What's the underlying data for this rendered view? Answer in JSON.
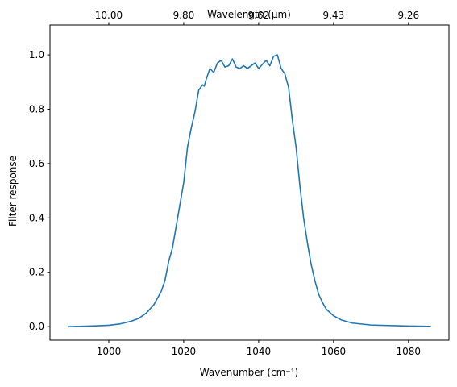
{
  "chart_data": {
    "type": "line",
    "xlabel": "Wavenumber (cm⁻¹)",
    "ylabel": "Filter response",
    "x2label": "Wavelength (μm)",
    "color": "#1f77b4",
    "x": [
      989,
      995,
      1000,
      1003,
      1006,
      1008,
      1010,
      1012,
      1014,
      1015,
      1016,
      1017,
      1018,
      1019,
      1020,
      1021,
      1022,
      1023,
      1024,
      1025,
      1025.5,
      1026,
      1027,
      1028,
      1029,
      1030,
      1031,
      1032,
      1033,
      1034,
      1035,
      1036,
      1037,
      1038,
      1039,
      1040,
      1041,
      1042,
      1043,
      1044,
      1045,
      1046,
      1047,
      1048,
      1049,
      1050,
      1051,
      1052,
      1053,
      1054,
      1055,
      1056,
      1057,
      1058,
      1060,
      1062,
      1065,
      1070,
      1080,
      1086
    ],
    "values": [
      0.0,
      0.002,
      0.005,
      0.01,
      0.02,
      0.03,
      0.05,
      0.08,
      0.13,
      0.17,
      0.24,
      0.29,
      0.37,
      0.45,
      0.53,
      0.66,
      0.73,
      0.79,
      0.87,
      0.89,
      0.885,
      0.91,
      0.95,
      0.935,
      0.97,
      0.98,
      0.955,
      0.96,
      0.985,
      0.955,
      0.95,
      0.96,
      0.95,
      0.96,
      0.97,
      0.95,
      0.965,
      0.98,
      0.96,
      0.995,
      1.0,
      0.95,
      0.93,
      0.88,
      0.76,
      0.66,
      0.52,
      0.4,
      0.31,
      0.23,
      0.17,
      0.12,
      0.09,
      0.065,
      0.04,
      0.025,
      0.013,
      0.006,
      0.002,
      0.001
    ],
    "xlim": [
      984.3,
      1090.8
    ],
    "ylim": [
      -0.05,
      1.11
    ],
    "xticks": [
      1000,
      1020,
      1040,
      1060,
      1080
    ],
    "yticks": [
      {
        "value": 0,
        "label": "0.0"
      },
      0.2,
      0.4,
      0.6,
      0.8,
      {
        "value": 1,
        "label": "1.0"
      }
    ],
    "x2ticks": [
      {
        "value": 1000,
        "label": "10.00"
      },
      {
        "value": 1020,
        "label": "9.80"
      },
      {
        "value": 1040,
        "label": "9.62"
      },
      {
        "value": 1060,
        "label": "9.43"
      },
      {
        "value": 1080,
        "label": "9.26"
      }
    ],
    "grid": false
  }
}
